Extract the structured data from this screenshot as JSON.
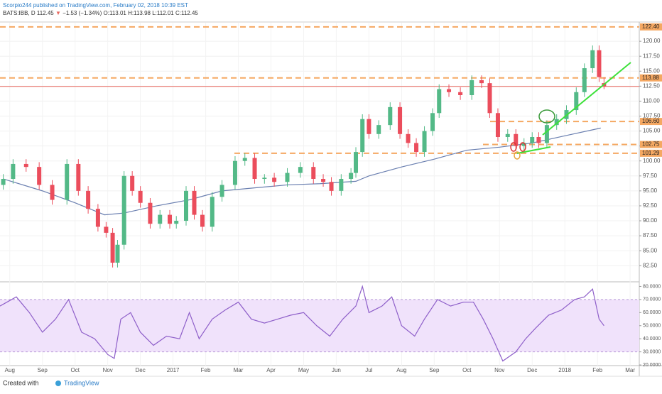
{
  "header": {
    "publisher_line": "Scorpio244 published on TradingView.com, February 02, 2018 10:39 EST",
    "symbol": "BATS:IBB, D",
    "price": "112.45",
    "arrow": "▼",
    "change": "−1.53 (−1.34%)",
    "ohlc": [
      "O:113.01",
      "H:113.98",
      "L:112.01",
      "C:112.45"
    ]
  },
  "footer": {
    "created": "Created with",
    "brand": "TradingView"
  },
  "chart_data": [
    {
      "type": "candlestick",
      "up_color": "#53b987",
      "down_color": "#eb4d5c",
      "xlim": [
        -0.3,
        19.28
      ],
      "xticks": [
        {
          "value": 0,
          "label": "Aug"
        },
        {
          "value": 1,
          "label": "Sep"
        },
        {
          "value": 2,
          "label": "Oct"
        },
        {
          "value": 3,
          "label": "Nov"
        },
        {
          "value": 4,
          "label": "Dec"
        },
        {
          "value": 5,
          "label": "2017"
        },
        {
          "value": 6,
          "label": "Feb"
        },
        {
          "value": 7,
          "label": "Mar"
        },
        {
          "value": 8,
          "label": "Apr"
        },
        {
          "value": 9,
          "label": "May"
        },
        {
          "value": 10,
          "label": "Jun"
        },
        {
          "value": 11,
          "label": "Jul"
        },
        {
          "value": 12,
          "label": "Aug"
        },
        {
          "value": 13,
          "label": "Sep"
        },
        {
          "value": 14,
          "label": "Oct"
        },
        {
          "value": 15,
          "label": "Nov"
        },
        {
          "value": 16,
          "label": "Dec"
        },
        {
          "value": 17,
          "label": "2018"
        },
        {
          "value": 18,
          "label": "Feb"
        },
        {
          "value": 19,
          "label": "Mar"
        }
      ],
      "ylim": [
        79.8,
        123.1
      ],
      "yticks": [
        {
          "value": 82.5,
          "label": "82.50"
        },
        {
          "value": 85,
          "label": "85.00"
        },
        {
          "value": 87.5,
          "label": "87.50"
        },
        {
          "value": 90,
          "label": "90.00"
        },
        {
          "value": 92.5,
          "label": "92.50"
        },
        {
          "value": 95,
          "label": "95.00"
        },
        {
          "value": 97.5,
          "label": "97.50"
        },
        {
          "value": 100,
          "label": "100.00"
        },
        {
          "value": 102.5,
          "label": "102.50"
        },
        {
          "value": 105,
          "label": "105.00"
        },
        {
          "value": 107.5,
          "label": "107.50"
        },
        {
          "value": 110,
          "label": "110.00"
        },
        {
          "value": 112.5,
          "label": "112.50"
        },
        {
          "value": 115,
          "label": "115.00"
        },
        {
          "value": 117.5,
          "label": "117.50"
        },
        {
          "value": 120,
          "label": "120.00"
        }
      ],
      "levels": [
        {
          "value": 122.4,
          "label": "122.40"
        },
        {
          "value": 113.88,
          "label": "113.88"
        },
        {
          "value": 106.6,
          "label": "106.60"
        },
        {
          "value": 102.75,
          "label": "102.75"
        },
        {
          "value": 101.29,
          "label": "101.29"
        }
      ],
      "level_color": "#f5a862",
      "last_price": 112.45,
      "last_color": "#e8685f",
      "candles": [
        {
          "x": -0.2,
          "open": 96,
          "high": 97.8,
          "low": 95.2,
          "close": 97
        },
        {
          "x": 0.1,
          "open": 97,
          "high": 100.3,
          "low": 96.2,
          "close": 99.5
        },
        {
          "x": 0.5,
          "open": 99.5,
          "high": 100.3,
          "low": 98.2,
          "close": 99
        },
        {
          "x": 0.9,
          "open": 99,
          "high": 99.8,
          "low": 95.2,
          "close": 96
        },
        {
          "x": 1.3,
          "open": 96,
          "high": 96.8,
          "low": 92.7,
          "close": 93.5
        },
        {
          "x": 1.75,
          "open": 93.5,
          "high": 100.3,
          "low": 92.7,
          "close": 99.5
        },
        {
          "x": 2.1,
          "open": 99.5,
          "high": 100.3,
          "low": 94.2,
          "close": 95
        },
        {
          "x": 2.4,
          "open": 95,
          "high": 95.8,
          "low": 91.2,
          "close": 92
        },
        {
          "x": 2.7,
          "open": 92,
          "high": 92.8,
          "low": 88.2,
          "close": 89
        },
        {
          "x": 2.95,
          "open": 89,
          "high": 89.8,
          "low": 87.2,
          "close": 88
        },
        {
          "x": 3.15,
          "open": 88,
          "high": 88.8,
          "low": 82.2,
          "close": 83
        },
        {
          "x": 3.3,
          "open": 83,
          "high": 86.8,
          "low": 82.2,
          "close": 86
        },
        {
          "x": 3.5,
          "open": 86,
          "high": 98.3,
          "low": 85.2,
          "close": 97.5
        },
        {
          "x": 3.75,
          "open": 97.5,
          "high": 98.3,
          "low": 94.2,
          "close": 95
        },
        {
          "x": 4.0,
          "open": 95,
          "high": 95.8,
          "low": 92.2,
          "close": 93
        },
        {
          "x": 4.3,
          "open": 93,
          "high": 93.8,
          "low": 88.7,
          "close": 89.5
        },
        {
          "x": 4.6,
          "open": 89.5,
          "high": 91.8,
          "low": 88.7,
          "close": 91
        },
        {
          "x": 4.9,
          "open": 91,
          "high": 91.8,
          "low": 88.7,
          "close": 89.5
        },
        {
          "x": 5.1,
          "open": 89.5,
          "high": 90.8,
          "low": 88.7,
          "close": 90
        },
        {
          "x": 5.4,
          "open": 90,
          "high": 95.8,
          "low": 89.2,
          "close": 95
        },
        {
          "x": 5.65,
          "open": 95,
          "high": 95.8,
          "low": 90.2,
          "close": 91
        },
        {
          "x": 5.9,
          "open": 91,
          "high": 91.8,
          "low": 88.2,
          "close": 89
        },
        {
          "x": 6.2,
          "open": 89,
          "high": 94.8,
          "low": 88.2,
          "close": 94
        },
        {
          "x": 6.5,
          "open": 94,
          "high": 96.8,
          "low": 93.2,
          "close": 96
        },
        {
          "x": 6.9,
          "open": 96,
          "high": 100.8,
          "low": 95.2,
          "close": 100
        },
        {
          "x": 7.2,
          "open": 100,
          "high": 101.3,
          "low": 99.2,
          "close": 100.5
        },
        {
          "x": 7.5,
          "open": 100.5,
          "high": 101.3,
          "low": 96.2,
          "close": 97
        },
        {
          "x": 7.8,
          "open": 97,
          "high": 97.8,
          "low": 96.2,
          "close": 97.2
        },
        {
          "x": 8.1,
          "open": 97.2,
          "high": 98,
          "low": 95.7,
          "close": 96.5
        },
        {
          "x": 8.5,
          "open": 96.5,
          "high": 98.8,
          "low": 95.7,
          "close": 98
        },
        {
          "x": 8.9,
          "open": 98,
          "high": 99.8,
          "low": 97.2,
          "close": 99
        },
        {
          "x": 9.3,
          "open": 99,
          "high": 99.8,
          "low": 96.2,
          "close": 97
        },
        {
          "x": 9.6,
          "open": 97,
          "high": 97.8,
          "low": 95.7,
          "close": 96.5
        },
        {
          "x": 9.85,
          "open": 96.5,
          "high": 97.3,
          "low": 94.2,
          "close": 95
        },
        {
          "x": 10.15,
          "open": 95,
          "high": 97.8,
          "low": 94.2,
          "close": 97
        },
        {
          "x": 10.45,
          "open": 97,
          "high": 98.8,
          "low": 96.2,
          "close": 98
        },
        {
          "x": 10.6,
          "open": 98,
          "high": 102.3,
          "low": 97.2,
          "close": 101.5
        },
        {
          "x": 10.8,
          "open": 101.5,
          "high": 107.8,
          "low": 100.7,
          "close": 107
        },
        {
          "x": 11.0,
          "open": 107,
          "high": 107.8,
          "low": 103.7,
          "close": 104.5
        },
        {
          "x": 11.3,
          "open": 104.5,
          "high": 106.8,
          "low": 103.7,
          "close": 106
        },
        {
          "x": 11.65,
          "open": 106,
          "high": 109.8,
          "low": 105.2,
          "close": 109
        },
        {
          "x": 11.95,
          "open": 109,
          "high": 109.8,
          "low": 103.7,
          "close": 104.5
        },
        {
          "x": 12.2,
          "open": 104.5,
          "high": 105.3,
          "low": 102.2,
          "close": 103
        },
        {
          "x": 12.45,
          "open": 103,
          "high": 103.8,
          "low": 100.7,
          "close": 101.5
        },
        {
          "x": 12.7,
          "open": 101.5,
          "high": 105.8,
          "low": 100.7,
          "close": 105
        },
        {
          "x": 12.95,
          "open": 105,
          "high": 108.8,
          "low": 104.2,
          "close": 108
        },
        {
          "x": 13.15,
          "open": 108,
          "high": 112.8,
          "low": 107.2,
          "close": 112
        },
        {
          "x": 13.45,
          "open": 112,
          "high": 112.8,
          "low": 110.7,
          "close": 111.5
        },
        {
          "x": 13.8,
          "open": 111.5,
          "high": 112.3,
          "low": 110.2,
          "close": 111
        },
        {
          "x": 14.15,
          "open": 111,
          "high": 114.3,
          "low": 110.2,
          "close": 113.5
        },
        {
          "x": 14.45,
          "open": 113.5,
          "high": 114.3,
          "low": 112.2,
          "close": 113
        },
        {
          "x": 14.7,
          "open": 113,
          "high": 113.8,
          "low": 107.2,
          "close": 108
        },
        {
          "x": 14.95,
          "open": 108,
          "high": 108.8,
          "low": 103.2,
          "close": 104
        },
        {
          "x": 15.25,
          "open": 104,
          "high": 105.3,
          "low": 103.2,
          "close": 104.5
        },
        {
          "x": 15.5,
          "open": 104.5,
          "high": 105.3,
          "low": 101.7,
          "close": 102.5
        },
        {
          "x": 15.75,
          "open": 102.5,
          "high": 103.8,
          "low": 101.7,
          "close": 103
        },
        {
          "x": 16.0,
          "open": 103,
          "high": 104.8,
          "low": 102.2,
          "close": 104
        },
        {
          "x": 16.2,
          "open": 104,
          "high": 104.8,
          "low": 102.2,
          "close": 103
        },
        {
          "x": 16.45,
          "open": 103,
          "high": 106.8,
          "low": 102.2,
          "close": 106
        },
        {
          "x": 16.75,
          "open": 106,
          "high": 107.8,
          "low": 105.2,
          "close": 107
        },
        {
          "x": 17.05,
          "open": 107,
          "high": 109.3,
          "low": 106.2,
          "close": 108.5
        },
        {
          "x": 17.35,
          "open": 108.5,
          "high": 112.3,
          "low": 107.7,
          "close": 111.5
        },
        {
          "x": 17.6,
          "open": 111.5,
          "high": 116.3,
          "low": 110.7,
          "close": 115.5
        },
        {
          "x": 17.85,
          "open": 115.5,
          "high": 119.3,
          "low": 114.7,
          "close": 118.5
        },
        {
          "x": 18.05,
          "open": 118.5,
          "high": 119.3,
          "low": 113.2,
          "close": 114
        },
        {
          "x": 18.2,
          "open": 113.01,
          "high": 113.98,
          "low": 112.01,
          "close": 112.45
        }
      ],
      "series": [
        {
          "color": "#6a7fb0",
          "x": [
            -0.2,
            1,
            2,
            2.9,
            3.5,
            4.5,
            5.5,
            6.5,
            7.5,
            8.5,
            9.5,
            10.6,
            11,
            12,
            13,
            14,
            15,
            16,
            17,
            18.1
          ],
          "values": [
            97,
            95,
            93,
            91,
            91.3,
            92.5,
            93.5,
            95,
            95.5,
            96,
            96.2,
            96.6,
            97.5,
            99,
            100.3,
            101.8,
            102.3,
            103,
            104.2,
            105.5
          ]
        }
      ]
    },
    {
      "type": "line",
      "color": "#8e5fc9",
      "band": [
        30,
        70
      ],
      "band_color": "#f0e2fb",
      "xlim": [
        -0.3,
        19.28
      ],
      "ylim": [
        19.5,
        83.5
      ],
      "yticks": [
        {
          "value": 20,
          "label": "20.0000"
        },
        {
          "value": 30,
          "label": "30.0000"
        },
        {
          "value": 40,
          "label": "40.0000"
        },
        {
          "value": 50,
          "label": "50.0000"
        },
        {
          "value": 60,
          "label": "60.0000"
        },
        {
          "value": 70,
          "label": "70.0000"
        },
        {
          "value": 80,
          "label": "80.0000"
        }
      ],
      "x": [
        -0.3,
        0.2,
        0.6,
        1,
        1.4,
        1.8,
        2.2,
        2.6,
        3,
        3.2,
        3.4,
        3.7,
        4,
        4.4,
        4.8,
        5.2,
        5.5,
        5.8,
        6.2,
        6.6,
        7,
        7.4,
        7.8,
        8.2,
        8.6,
        9,
        9.4,
        9.8,
        10.2,
        10.6,
        10.8,
        11,
        11.4,
        11.7,
        12,
        12.4,
        12.7,
        13.1,
        13.5,
        13.9,
        14.2,
        14.5,
        14.8,
        15.1,
        15.5,
        15.8,
        16.1,
        16.5,
        16.9,
        17.3,
        17.6,
        17.85,
        18.05,
        18.2
      ],
      "values": [
        65,
        72,
        60,
        45,
        55,
        70,
        45,
        40,
        28,
        25,
        55,
        60,
        45,
        35,
        42,
        40,
        60,
        40,
        55,
        62,
        68,
        55,
        52,
        55,
        58,
        60,
        50,
        42,
        55,
        65,
        80,
        60,
        65,
        72,
        50,
        42,
        55,
        70,
        65,
        68,
        68,
        55,
        40,
        23,
        30,
        40,
        48,
        58,
        62,
        70,
        72,
        78,
        55,
        50
      ]
    }
  ]
}
